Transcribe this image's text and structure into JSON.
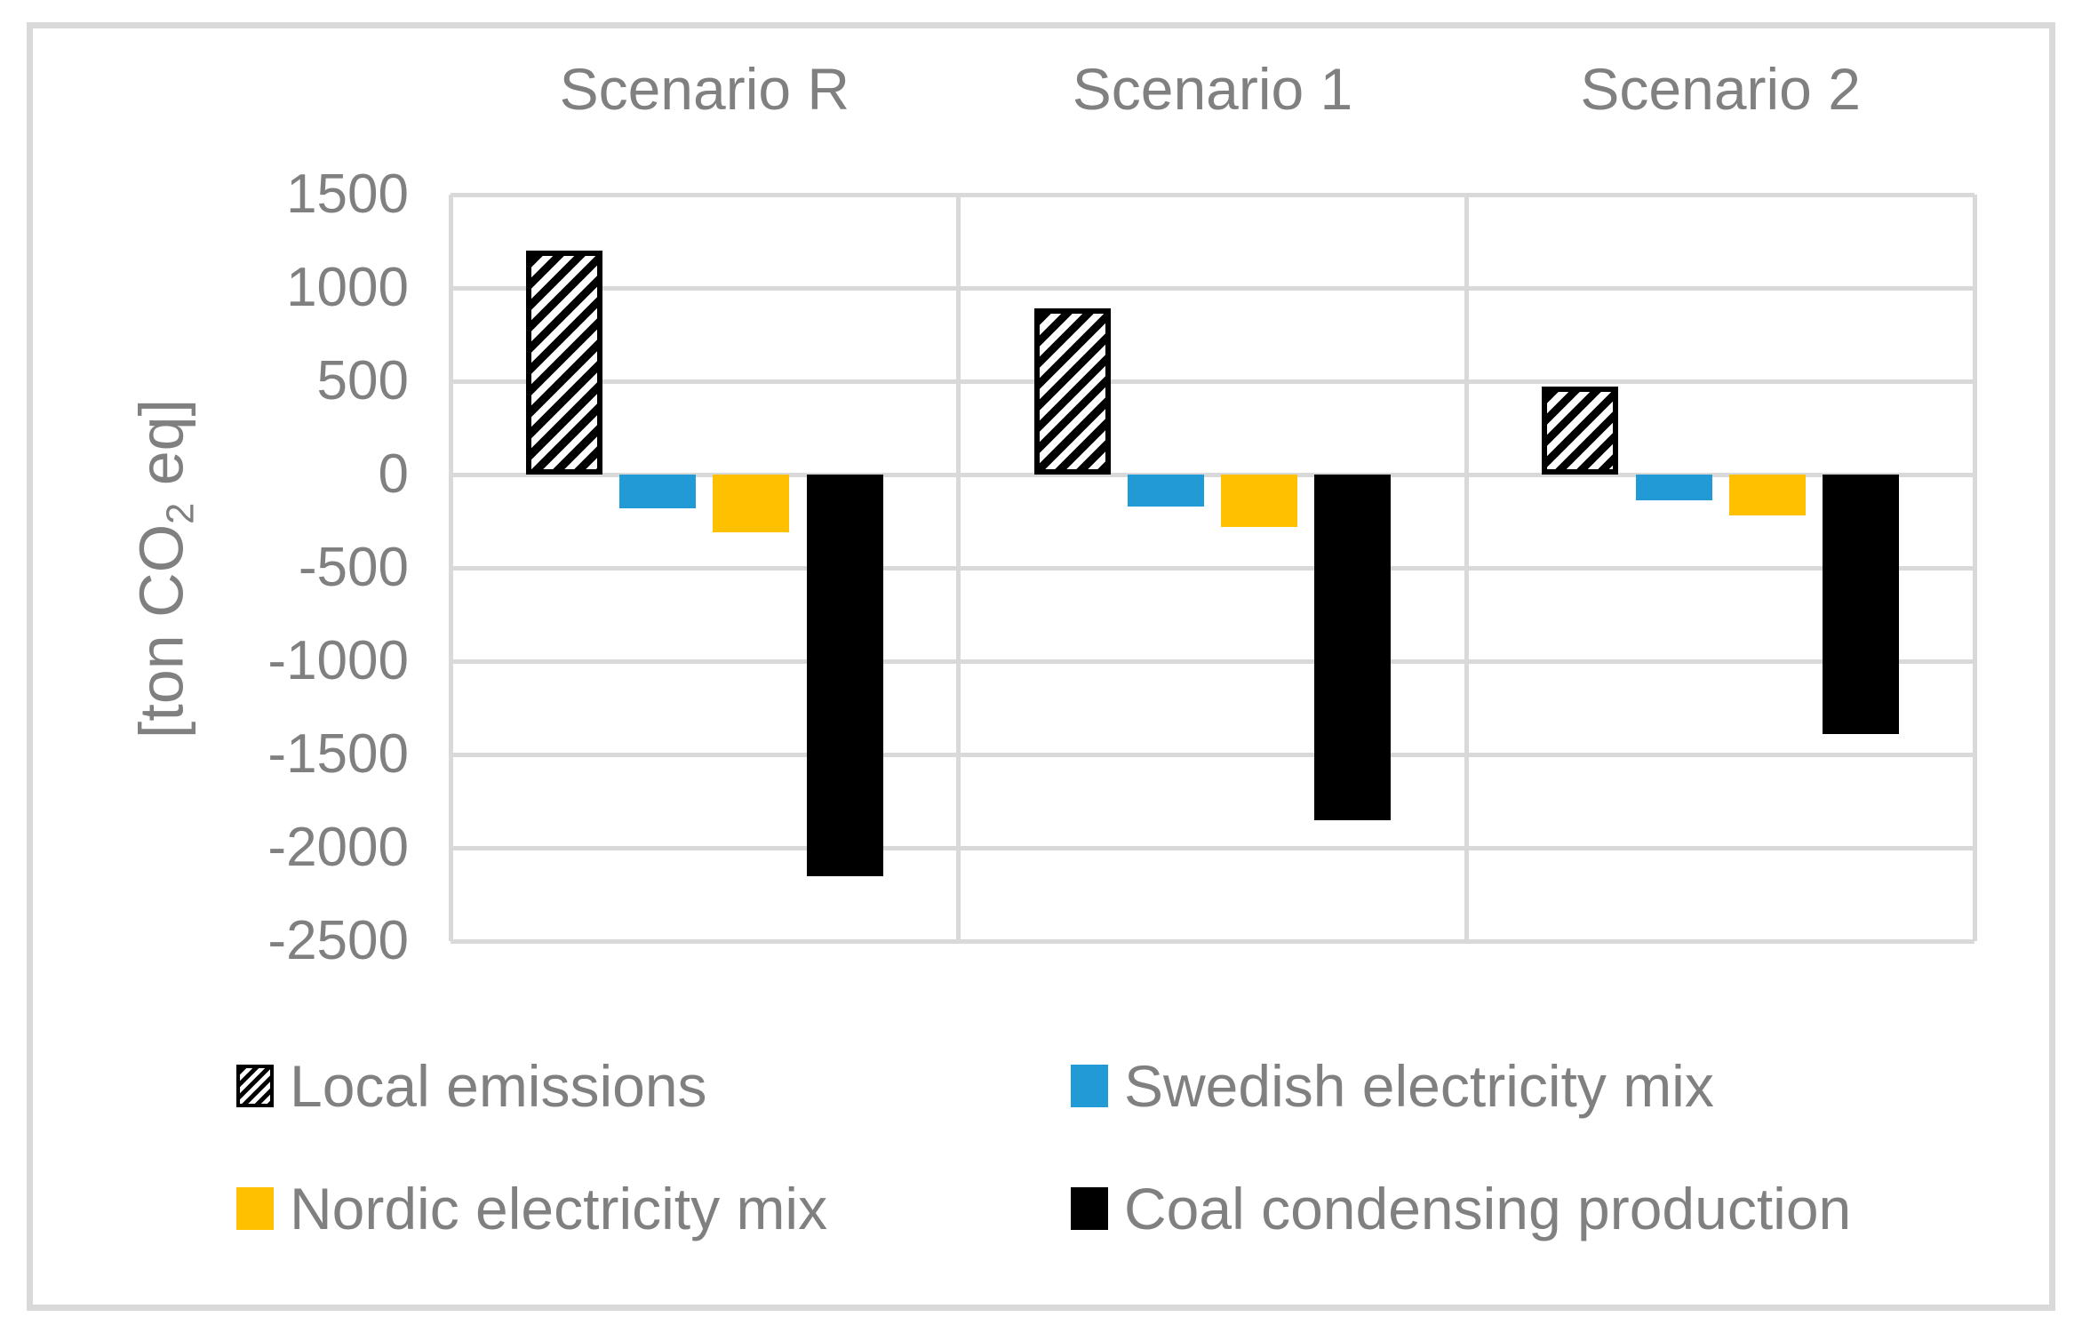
{
  "chart_data": {
    "type": "bar",
    "categories": [
      "Scenario R",
      "Scenario 1",
      "Scenario 2"
    ],
    "series": [
      {
        "name": "Local emissions",
        "fill": "hatch",
        "color": "#000000",
        "values": [
          1200,
          890,
          470
        ]
      },
      {
        "name": "Swedish electricity mix",
        "fill": "solid",
        "color": "#219AD6",
        "values": [
          -180,
          -170,
          -140
        ]
      },
      {
        "name": "Nordic electricity mix",
        "fill": "solid",
        "color": "#FFC000",
        "values": [
          -310,
          -280,
          -220
        ]
      },
      {
        "name": "Coal condensing production",
        "fill": "solid",
        "color": "#000000",
        "values": [
          -2150,
          -1850,
          -1390
        ]
      }
    ],
    "ylabel": {
      "pre": "[ton CO",
      "sub": "2",
      "post": " eq]"
    },
    "yticks": [
      1500,
      1000,
      500,
      0,
      -500,
      -1000,
      -1500,
      -2000,
      -2500
    ],
    "ylim": [
      -2500,
      1500
    ],
    "grid": {
      "horizontal": true,
      "category_dividers": true
    },
    "legend_position": "bottom-two-columns"
  },
  "style": {
    "axis_text_color": "#808080",
    "gridline_color": "#D9D9D9",
    "figure_border_color": "#D9D9D9",
    "background": "#FFFFFF"
  }
}
